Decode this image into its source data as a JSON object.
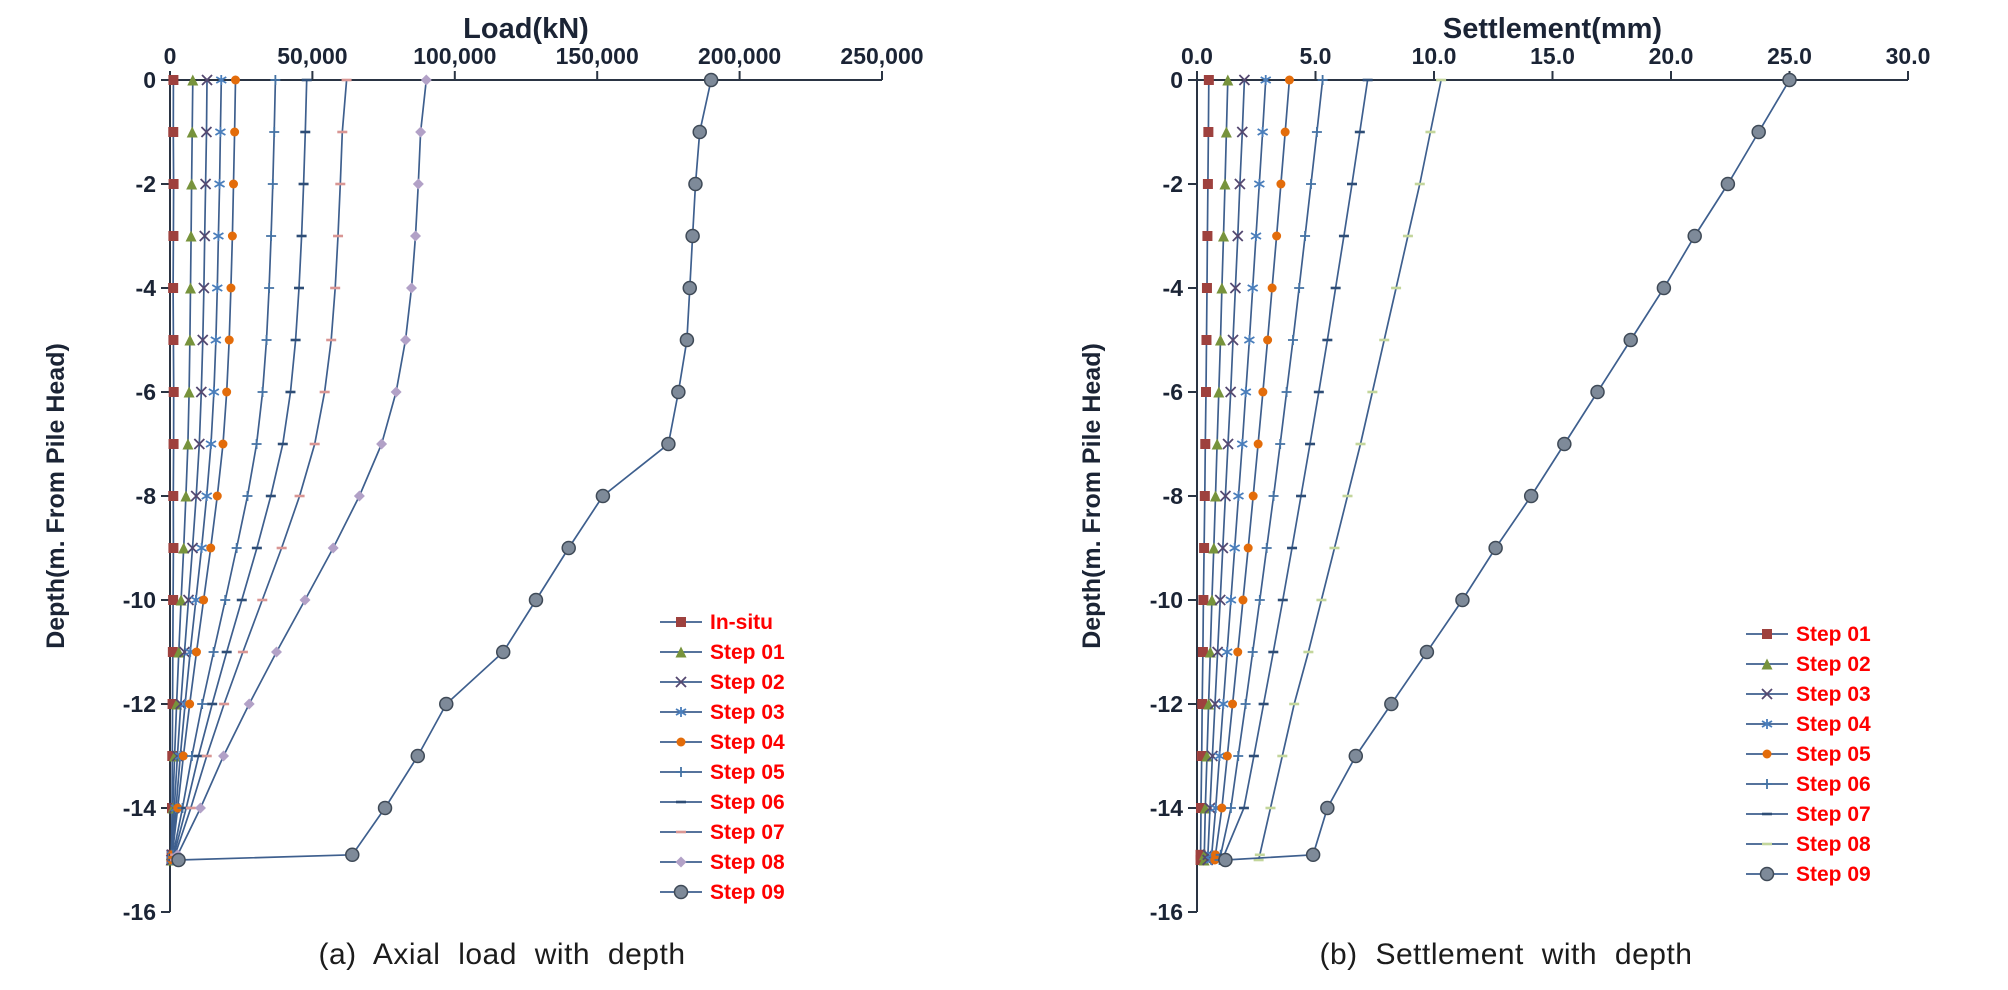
{
  "colors": {
    "line": "#3E5F8E",
    "axis_line": "#2A3443",
    "axis_text": "#1B2435",
    "legend_text": "#FF0000",
    "caption_text": "#1C1C1C"
  },
  "chart_data": [
    {
      "type": "line",
      "title": "Load(kN)",
      "ylabel": "Depth(m. From Pile Head)",
      "caption": "(a) Axial load with depth",
      "xlim": [
        0,
        250000
      ],
      "ylim": [
        -16,
        0
      ],
      "grid": false,
      "legend_position": "lower-right-inside",
      "xticks": {
        "values": [
          0,
          50000,
          100000,
          150000,
          200000,
          250000
        ],
        "labels": [
          "0",
          "50,000",
          "100,000",
          "150,000",
          "200,000",
          "250,000"
        ]
      },
      "yticks": {
        "values": [
          0,
          -2,
          -4,
          -6,
          -8,
          -10,
          -12,
          -14,
          -16
        ],
        "labels": [
          "0",
          "-2",
          "-4",
          "-6",
          "-8",
          "-10",
          "-12",
          "-14",
          "-16"
        ]
      },
      "depths": [
        0,
        -1,
        -2,
        -3,
        -4,
        -5,
        -6,
        -7,
        -8,
        -9,
        -10,
        -11,
        -12,
        -13,
        -14,
        -14.9,
        -15
      ],
      "series": [
        {
          "name": "In-situ",
          "marker": "square",
          "color": "#9E413E",
          "size": 5,
          "values": [
            1200,
            1150,
            1250,
            1200,
            1100,
            1200,
            1300,
            1250,
            1150,
            1200,
            1100,
            1000,
            900,
            800,
            700,
            550,
            500
          ]
        },
        {
          "name": "Step 01",
          "marker": "triangle",
          "color": "#77933C",
          "size": 5.5,
          "values": [
            8000,
            7800,
            7600,
            7400,
            7200,
            7000,
            6700,
            6300,
            5600,
            4800,
            3900,
            3100,
            2300,
            1600,
            1000,
            450,
            400
          ]
        },
        {
          "name": "Step 02",
          "marker": "x",
          "color": "#544870",
          "size": 5,
          "values": [
            13000,
            12800,
            12500,
            12200,
            11900,
            11500,
            11000,
            10300,
            9200,
            7900,
            6500,
            5100,
            3800,
            2600,
            1500,
            600,
            500
          ]
        },
        {
          "name": "Step 03",
          "marker": "asterisk",
          "color": "#4A7EBB",
          "size": 5,
          "values": [
            18000,
            17700,
            17400,
            17000,
            16600,
            16100,
            15400,
            14400,
            12900,
            11100,
            9100,
            7100,
            5300,
            3600,
            2100,
            700,
            600
          ]
        },
        {
          "name": "Step 04",
          "marker": "circle",
          "color": "#E36C0A",
          "size": 4.5,
          "values": [
            23000,
            22700,
            22300,
            21900,
            21400,
            20800,
            19900,
            18600,
            16600,
            14300,
            11800,
            9300,
            6900,
            4700,
            2700,
            800,
            700
          ]
        },
        {
          "name": "Step 05",
          "marker": "plus",
          "color": "#4472A4",
          "size": 5,
          "values": [
            37000,
            36600,
            36100,
            35500,
            34800,
            33900,
            32500,
            30400,
            27200,
            23400,
            19400,
            15300,
            11300,
            7700,
            4400,
            1100,
            1000
          ]
        },
        {
          "name": "Step 06",
          "marker": "dash",
          "color": "#2E4D76",
          "size": 5,
          "values": [
            48000,
            47500,
            46900,
            46200,
            45300,
            44100,
            42300,
            39600,
            35400,
            30500,
            25200,
            19900,
            14800,
            10000,
            5700,
            1400,
            1300
          ]
        },
        {
          "name": "Step 07",
          "marker": "dash",
          "color": "#D99694",
          "size": 5,
          "values": [
            62000,
            60500,
            59800,
            59000,
            58000,
            56600,
            54300,
            50800,
            45500,
            39200,
            32400,
            25600,
            19000,
            12900,
            7300,
            1800,
            1700
          ]
        },
        {
          "name": "Step 08",
          "marker": "diamond",
          "color": "#B2A1C7",
          "size": 5.5,
          "values": [
            90000,
            88000,
            87200,
            86200,
            84800,
            82700,
            79400,
            74300,
            66500,
            57300,
            47400,
            37400,
            27800,
            18800,
            10700,
            2700,
            2500
          ]
        },
        {
          "name": "Step 09",
          "marker": "circle",
          "color": "#7E8A99",
          "edge": "#3F4A57",
          "size": 6.5,
          "values": [
            190000,
            186000,
            184500,
            183500,
            182500,
            181500,
            178500,
            175000,
            152000,
            140000,
            128500,
            117000,
            97000,
            87000,
            75500,
            64000,
            3000
          ]
        }
      ]
    },
    {
      "type": "line",
      "title": "Settlement(mm)",
      "ylabel": "Depth(m. From Pile Head)",
      "caption": "(b) Settlement with depth",
      "xlim": [
        0,
        30
      ],
      "ylim": [
        -16,
        0
      ],
      "grid": false,
      "legend_position": "lower-right-inside",
      "xticks": {
        "values": [
          0,
          5,
          10,
          15,
          20,
          25,
          30
        ],
        "labels": [
          "0.0",
          "5.0",
          "10.0",
          "15.0",
          "20.0",
          "25.0",
          "30.0"
        ]
      },
      "yticks": {
        "values": [
          0,
          -2,
          -4,
          -6,
          -8,
          -10,
          -12,
          -14,
          -16
        ],
        "labels": [
          "0",
          "-2",
          "-4",
          "-6",
          "-8",
          "-10",
          "-12",
          "-14",
          "-16"
        ]
      },
      "depths": [
        0,
        -1,
        -2,
        -3,
        -4,
        -5,
        -6,
        -7,
        -8,
        -9,
        -10,
        -11,
        -12,
        -13,
        -14,
        -14.9,
        -15
      ],
      "series": [
        {
          "name": "Step 01",
          "marker": "square",
          "color": "#9E413E",
          "size": 5,
          "values": [
            0.5,
            0.48,
            0.46,
            0.44,
            0.42,
            0.4,
            0.38,
            0.35,
            0.33,
            0.3,
            0.27,
            0.25,
            0.22,
            0.2,
            0.17,
            0.15,
            0.15
          ]
        },
        {
          "name": "Step 02",
          "marker": "triangle",
          "color": "#77933C",
          "size": 5.5,
          "values": [
            1.3,
            1.24,
            1.18,
            1.12,
            1.05,
            0.99,
            0.92,
            0.85,
            0.78,
            0.71,
            0.63,
            0.56,
            0.49,
            0.42,
            0.35,
            0.31,
            0.3
          ]
        },
        {
          "name": "Step 03",
          "marker": "x",
          "color": "#544870",
          "size": 5,
          "values": [
            2.0,
            1.91,
            1.81,
            1.72,
            1.62,
            1.52,
            1.42,
            1.31,
            1.2,
            1.09,
            0.98,
            0.87,
            0.76,
            0.65,
            0.55,
            0.46,
            0.45
          ]
        },
        {
          "name": "Step 04",
          "marker": "asterisk",
          "color": "#4A7EBB",
          "size": 5,
          "values": [
            2.9,
            2.77,
            2.63,
            2.49,
            2.35,
            2.21,
            2.06,
            1.91,
            1.75,
            1.59,
            1.43,
            1.27,
            1.11,
            0.95,
            0.79,
            0.62,
            0.6
          ]
        },
        {
          "name": "Step 05",
          "marker": "circle",
          "color": "#E36C0A",
          "size": 4.5,
          "values": [
            3.9,
            3.72,
            3.54,
            3.36,
            3.17,
            2.98,
            2.78,
            2.58,
            2.37,
            2.16,
            1.94,
            1.72,
            1.5,
            1.28,
            1.05,
            0.78,
            0.75
          ]
        },
        {
          "name": "Step 06",
          "marker": "plus",
          "color": "#4472A4",
          "size": 5,
          "values": [
            5.3,
            5.06,
            4.81,
            4.56,
            4.31,
            4.05,
            3.78,
            3.51,
            3.23,
            2.94,
            2.65,
            2.35,
            2.05,
            1.74,
            1.43,
            1.0,
            0.95
          ]
        },
        {
          "name": "Step 07",
          "marker": "dash",
          "color": "#2E4D76",
          "size": 5,
          "values": [
            7.2,
            6.87,
            6.54,
            6.2,
            5.85,
            5.5,
            5.14,
            4.77,
            4.39,
            4.01,
            3.62,
            3.22,
            2.81,
            2.4,
            1.98,
            1.15,
            1.1
          ]
        },
        {
          "name": "Step 08",
          "marker": "dash",
          "color": "#C3D69B",
          "size": 5,
          "values": [
            10.3,
            9.85,
            9.4,
            8.9,
            8.4,
            7.9,
            7.4,
            6.9,
            6.35,
            5.8,
            5.25,
            4.7,
            4.1,
            3.6,
            3.1,
            2.65,
            2.6
          ]
        },
        {
          "name": "Step 09",
          "marker": "circle",
          "color": "#7E8A99",
          "edge": "#3F4A57",
          "size": 6.5,
          "values": [
            25.0,
            23.7,
            22.4,
            21.0,
            19.7,
            18.3,
            16.9,
            15.5,
            14.1,
            12.6,
            11.2,
            9.7,
            8.2,
            6.7,
            5.5,
            4.9,
            1.2
          ]
        }
      ]
    }
  ]
}
